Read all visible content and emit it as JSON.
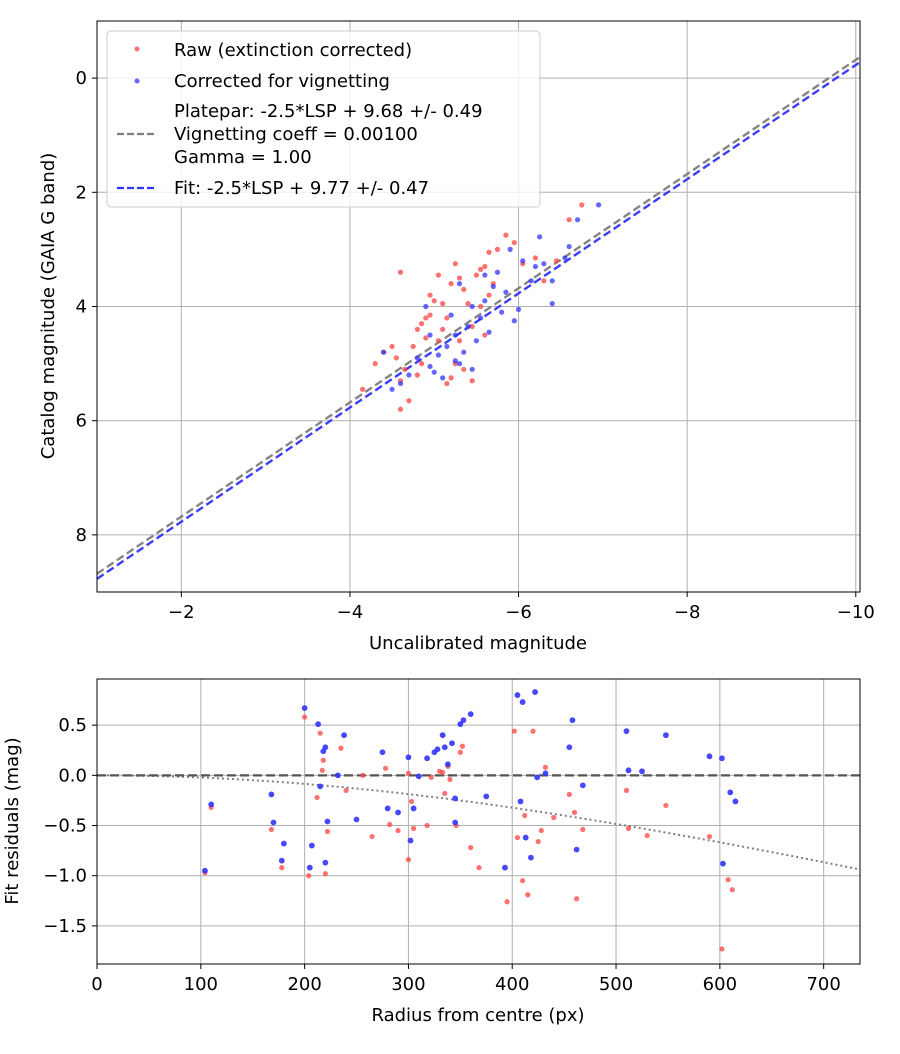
{
  "chart_data": [
    {
      "type": "scatter",
      "xlabel": "Uncalibrated magnitude",
      "ylabel": "Catalog magnitude (GAIA G band)",
      "xlim": [
        -1.0,
        -10.05
      ],
      "ylim": [
        9.0,
        -1.0
      ],
      "xticks": [
        -2,
        -4,
        -6,
        -8,
        -10
      ],
      "xtick_labels": [
        "−2",
        "−4",
        "−6",
        "−8",
        "−10"
      ],
      "yticks": [
        0,
        2,
        4,
        6,
        8
      ],
      "ytick_labels": [
        "0",
        "2",
        "4",
        "6",
        "8"
      ],
      "grid": true,
      "legend_position": "top-left",
      "legend": [
        {
          "label": "Raw (extinction corrected)",
          "kind": "point",
          "color": "#ff4040"
        },
        {
          "label": "Corrected for vignetting",
          "kind": "point",
          "color": "#3333ff"
        },
        {
          "label": "Platepar: -2.5*LSP + 9.68 +/- 0.49",
          "kind": "line",
          "color": "#7f7f7f"
        },
        {
          "label": "Vignetting coeff = 0.00100",
          "kind": "line-cont",
          "color": "#7f7f7f"
        },
        {
          "label": "Gamma = 1.00",
          "kind": "line-cont",
          "color": "#7f7f7f"
        },
        {
          "label": "Fit: -2.5*LSP + 9.77 +/- 0.47",
          "kind": "line",
          "color": "#3333ff"
        }
      ],
      "lines": [
        {
          "name": "Platepar",
          "slope": 1.0,
          "intercept": 9.68,
          "color": "#7f7f7f"
        },
        {
          "name": "Fit",
          "slope": 1.0,
          "intercept": 9.77,
          "color": "#3333ff"
        }
      ],
      "series": [
        {
          "name": "Raw (extinction corrected)",
          "color": "#ff4040",
          "points": [
            [
              -6.75,
              2.22
            ],
            [
              -6.6,
              2.48
            ],
            [
              -6.45,
              3.2
            ],
            [
              -6.3,
              3.55
            ],
            [
              -6.2,
              3.15
            ],
            [
              -6.05,
              3.25
            ],
            [
              -5.95,
              2.88
            ],
            [
              -5.85,
              2.75
            ],
            [
              -5.75,
              3.0
            ],
            [
              -5.65,
              3.8
            ],
            [
              -5.6,
              3.3
            ],
            [
              -5.55,
              4.0
            ],
            [
              -5.5,
              3.45
            ],
            [
              -5.45,
              4.35
            ],
            [
              -5.35,
              3.7
            ],
            [
              -5.3,
              3.5
            ],
            [
              -5.25,
              3.25
            ],
            [
              -5.2,
              3.6
            ],
            [
              -5.15,
              4.2
            ],
            [
              -5.1,
              4.4
            ],
            [
              -5.05,
              4.6
            ],
            [
              -5.0,
              3.9
            ],
            [
              -4.95,
              4.15
            ],
            [
              -4.9,
              4.55
            ],
            [
              -4.85,
              5.0
            ],
            [
              -4.8,
              5.2
            ],
            [
              -4.75,
              4.7
            ],
            [
              -4.65,
              5.1
            ],
            [
              -4.6,
              3.4
            ],
            [
              -4.55,
              4.9
            ],
            [
              -4.5,
              4.7
            ],
            [
              -4.4,
              4.8
            ],
            [
              -4.3,
              5.0
            ],
            [
              -4.15,
              5.45
            ],
            [
              -4.6,
              5.8
            ],
            [
              -4.7,
              5.65
            ],
            [
              -4.8,
              4.4
            ],
            [
              -4.9,
              4.2
            ],
            [
              -4.95,
              3.8
            ],
            [
              -5.05,
              3.45
            ],
            [
              -5.1,
              3.95
            ],
            [
              -5.2,
              5.25
            ],
            [
              -5.25,
              5.0
            ],
            [
              -5.3,
              4.6
            ],
            [
              -5.35,
              5.1
            ],
            [
              -5.4,
              3.95
            ],
            [
              -5.55,
              3.35
            ],
            [
              -5.65,
              3.05
            ],
            [
              -5.7,
              3.6
            ],
            [
              -5.15,
              5.35
            ],
            [
              -4.85,
              4.3
            ],
            [
              -5.45,
              5.3
            ],
            [
              -5.6,
              4.5
            ],
            [
              -4.6,
              5.3
            ]
          ]
        },
        {
          "name": "Corrected for vignetting",
          "color": "#3333ff",
          "points": [
            [
              -6.95,
              2.22
            ],
            [
              -6.7,
              2.48
            ],
            [
              -6.6,
              2.95
            ],
            [
              -6.55,
              3.15
            ],
            [
              -6.4,
              3.95
            ],
            [
              -6.3,
              3.25
            ],
            [
              -6.25,
              2.78
            ],
            [
              -6.15,
              3.55
            ],
            [
              -6.05,
              3.2
            ],
            [
              -6.0,
              4.05
            ],
            [
              -5.95,
              4.25
            ],
            [
              -5.85,
              3.75
            ],
            [
              -5.8,
              4.1
            ],
            [
              -5.75,
              3.4
            ],
            [
              -5.7,
              3.65
            ],
            [
              -5.65,
              4.45
            ],
            [
              -5.6,
              3.9
            ],
            [
              -5.55,
              4.2
            ],
            [
              -5.5,
              4.6
            ],
            [
              -5.45,
              4.0
            ],
            [
              -5.4,
              4.35
            ],
            [
              -5.35,
              4.8
            ],
            [
              -5.3,
              5.0
            ],
            [
              -5.25,
              4.5
            ],
            [
              -5.2,
              4.15
            ],
            [
              -5.15,
              4.7
            ],
            [
              -5.1,
              5.25
            ],
            [
              -5.05,
              4.85
            ],
            [
              -5.0,
              5.15
            ],
            [
              -4.95,
              4.5
            ],
            [
              -4.9,
              4.0
            ],
            [
              -4.8,
              4.9
            ],
            [
              -4.7,
              5.2
            ],
            [
              -4.6,
              5.35
            ],
            [
              -4.5,
              5.45
            ],
            [
              -4.4,
              4.8
            ],
            [
              -5.6,
              3.45
            ],
            [
              -5.3,
              3.6
            ],
            [
              -6.2,
              3.3
            ],
            [
              -5.9,
              3.0
            ],
            [
              -6.4,
              3.55
            ],
            [
              -5.45,
              5.1
            ],
            [
              -5.25,
              4.95
            ],
            [
              -4.95,
              5.05
            ]
          ]
        }
      ]
    },
    {
      "type": "scatter",
      "xlabel": "Radius from centre (px)",
      "ylabel": "Fit residuals (mag)",
      "xlim": [
        0,
        735
      ],
      "ylim": [
        -1.88,
        0.96
      ],
      "xticks": [
        0,
        100,
        200,
        300,
        400,
        500,
        600,
        700
      ],
      "xtick_labels": [
        "0",
        "100",
        "200",
        "300",
        "400",
        "500",
        "600",
        "700"
      ],
      "yticks": [
        0.5,
        0.0,
        -0.5,
        -1.0,
        -1.5
      ],
      "ytick_labels": [
        "0.5",
        "0.0",
        "−0.5",
        "−1.0",
        "−1.5"
      ],
      "grid": true,
      "zero_line": {
        "y": 0,
        "color": "#555555"
      },
      "vignetting_curve": {
        "coeff": 0.001,
        "color": "#7f7f7f"
      },
      "series": [
        {
          "name": "Raw (extinction corrected)",
          "color": "#ff4040",
          "points": [
            [
              104,
              -0.97
            ],
            [
              110,
              -0.32
            ],
            [
              168,
              -0.54
            ],
            [
              178,
              -0.92
            ],
            [
              200,
              0.58
            ],
            [
              204,
              -1.0
            ],
            [
              212,
              -0.22
            ],
            [
              215,
              0.42
            ],
            [
              217,
              0.05
            ],
            [
              218,
              0.15
            ],
            [
              220,
              -0.98
            ],
            [
              222,
              -0.56
            ],
            [
              235,
              0.27
            ],
            [
              240,
              -0.15
            ],
            [
              278,
              0.07
            ],
            [
              282,
              -0.49
            ],
            [
              290,
              -0.55
            ],
            [
              300,
              -0.84
            ],
            [
              303,
              -0.26
            ],
            [
              305,
              -0.53
            ],
            [
              318,
              -0.5
            ],
            [
              322,
              -0.02
            ],
            [
              330,
              0.04
            ],
            [
              333,
              0.03
            ],
            [
              335,
              -0.18
            ],
            [
              338,
              0.09
            ],
            [
              340,
              -0.04
            ],
            [
              346,
              -0.5
            ],
            [
              350,
              0.23
            ],
            [
              352,
              0.29
            ],
            [
              360,
              -0.72
            ],
            [
              368,
              -0.92
            ],
            [
              395,
              -1.26
            ],
            [
              402,
              0.44
            ],
            [
              405,
              -0.62
            ],
            [
              410,
              -1.05
            ],
            [
              412,
              -0.4
            ],
            [
              415,
              -1.19
            ],
            [
              420,
              0.44
            ],
            [
              425,
              -0.66
            ],
            [
              428,
              -0.55
            ],
            [
              432,
              0.08
            ],
            [
              440,
              -0.42
            ],
            [
              455,
              -0.19
            ],
            [
              460,
              -0.37
            ],
            [
              462,
              -1.23
            ],
            [
              468,
              -0.54
            ],
            [
              510,
              -0.15
            ],
            [
              512,
              -0.53
            ],
            [
              530,
              -0.6
            ],
            [
              548,
              -0.3
            ],
            [
              590,
              -0.61
            ],
            [
              602,
              -1.73
            ],
            [
              608,
              -1.04
            ],
            [
              612,
              -1.14
            ],
            [
              300,
              0.02
            ],
            [
              265,
              -0.61
            ],
            [
              256,
              0.0
            ]
          ]
        },
        {
          "name": "Corrected for vignetting",
          "color": "#3333ff",
          "points": [
            [
              104,
              -0.95
            ],
            [
              110,
              -0.29
            ],
            [
              168,
              -0.19
            ],
            [
              170,
              -0.47
            ],
            [
              178,
              -0.85
            ],
            [
              180,
              -0.68
            ],
            [
              200,
              0.67
            ],
            [
              205,
              -0.92
            ],
            [
              207,
              -0.7
            ],
            [
              213,
              0.51
            ],
            [
              215,
              -0.11
            ],
            [
              218,
              0.24
            ],
            [
              220,
              0.28
            ],
            [
              220,
              -0.87
            ],
            [
              222,
              -0.46
            ],
            [
              232,
              0.0
            ],
            [
              238,
              0.4
            ],
            [
              250,
              -0.44
            ],
            [
              275,
              0.23
            ],
            [
              280,
              -0.33
            ],
            [
              290,
              -0.37
            ],
            [
              300,
              0.18
            ],
            [
              302,
              -0.65
            ],
            [
              305,
              -0.33
            ],
            [
              310,
              -0.01
            ],
            [
              318,
              0.17
            ],
            [
              325,
              0.23
            ],
            [
              328,
              0.26
            ],
            [
              333,
              0.4
            ],
            [
              335,
              0.28
            ],
            [
              338,
              0.11
            ],
            [
              342,
              0.32
            ],
            [
              345,
              -0.23
            ],
            [
              350,
              0.51
            ],
            [
              353,
              0.55
            ],
            [
              360,
              0.61
            ],
            [
              375,
              -0.21
            ],
            [
              393,
              -0.92
            ],
            [
              405,
              0.8
            ],
            [
              408,
              -0.26
            ],
            [
              410,
              0.73
            ],
            [
              413,
              -0.62
            ],
            [
              418,
              -0.82
            ],
            [
              422,
              0.83
            ],
            [
              424,
              -0.02
            ],
            [
              432,
              0.02
            ],
            [
              455,
              0.28
            ],
            [
              458,
              0.55
            ],
            [
              462,
              -0.74
            ],
            [
              468,
              -0.1
            ],
            [
              510,
              0.44
            ],
            [
              512,
              0.05
            ],
            [
              525,
              0.04
            ],
            [
              548,
              0.4
            ],
            [
              590,
              0.19
            ],
            [
              602,
              0.17
            ],
            [
              603,
              -0.88
            ],
            [
              610,
              -0.17
            ],
            [
              615,
              -0.26
            ],
            [
              345,
              -0.47
            ]
          ]
        }
      ]
    }
  ]
}
